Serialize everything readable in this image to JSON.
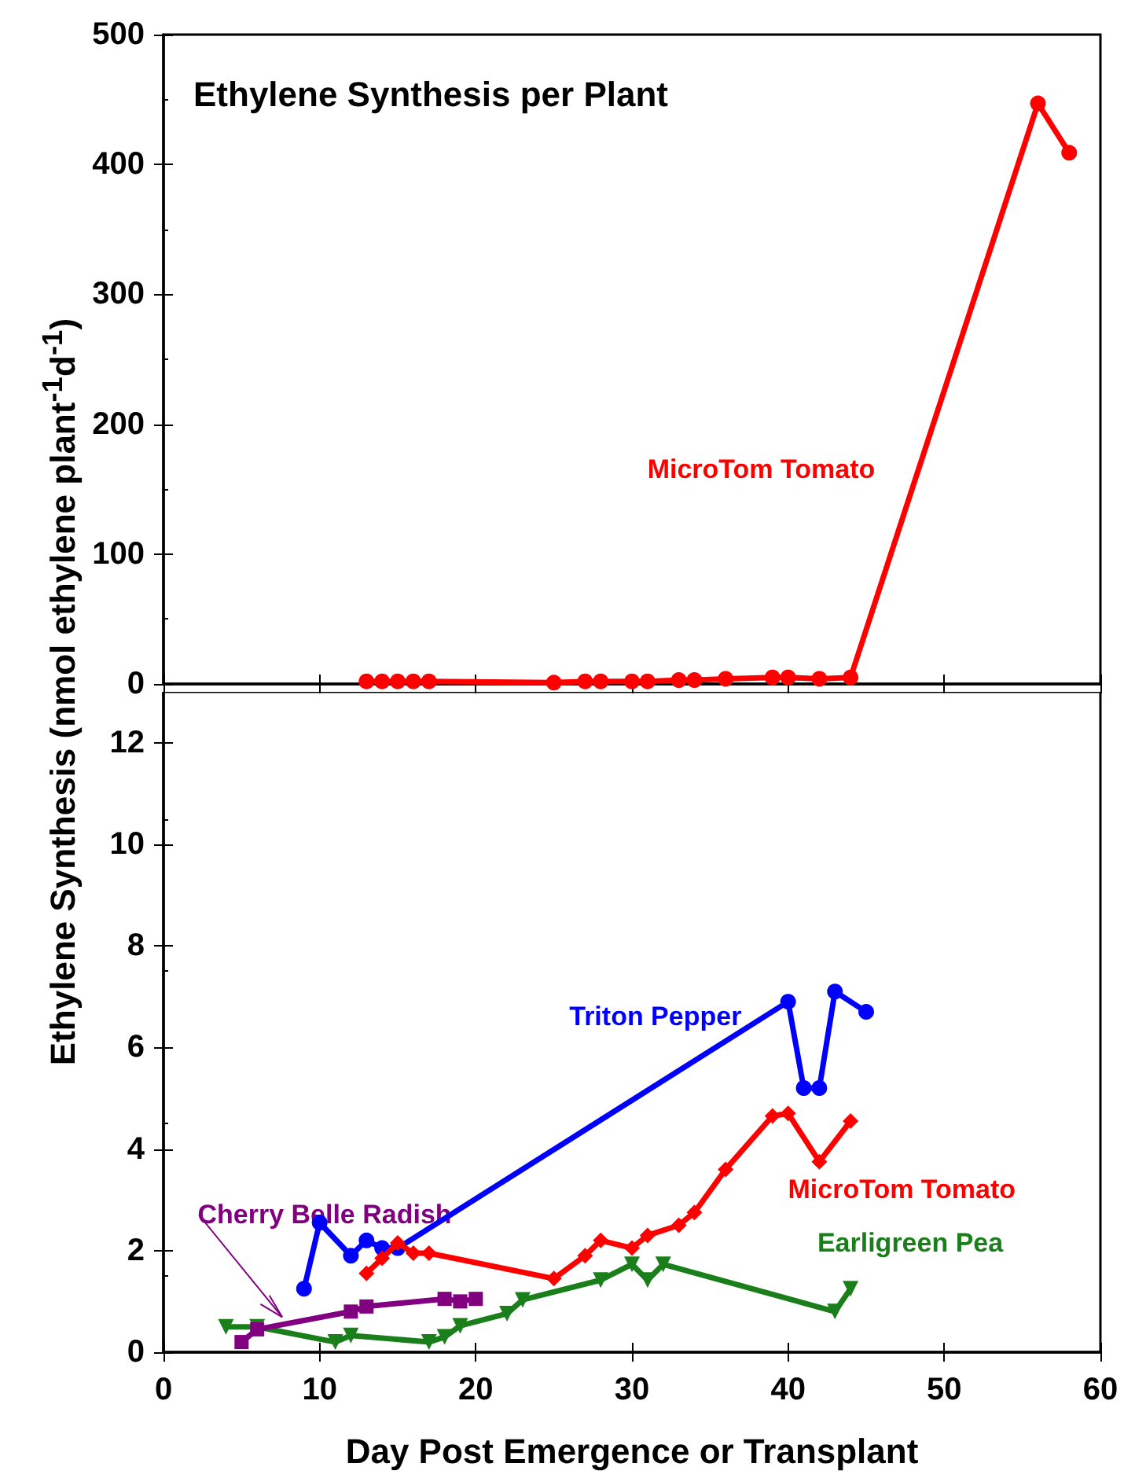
{
  "chart_data": [
    {
      "type": "line",
      "title": "Ethylene Synthesis per Plant",
      "xlim": [
        0,
        60
      ],
      "xticks": [
        0,
        10,
        20,
        30,
        40,
        50,
        60
      ],
      "ylim": [
        0,
        500
      ],
      "yticks": [
        0,
        100,
        200,
        300,
        400,
        500
      ],
      "tick_labels": "y",
      "grid": false,
      "legend": false,
      "series": [
        {
          "name": "MicroTom Tomato",
          "color": "#ff0000",
          "marker": "circle",
          "x": [
            13,
            14,
            15,
            16,
            17,
            25,
            27,
            28,
            30,
            31,
            33,
            34,
            36,
            39,
            40,
            42,
            44,
            56,
            58
          ],
          "values": [
            2,
            2,
            2,
            2,
            2,
            1,
            2,
            2,
            2,
            2,
            3,
            3,
            4,
            5,
            5,
            4,
            5,
            447,
            409
          ]
        }
      ]
    },
    {
      "type": "line",
      "xlabel": "Day Post Emergence or Transplant",
      "ylabel": "Ethylene Synthesis (nmol ethylene plant$^{-1}$d$^{-1}$)",
      "xlim": [
        0,
        60
      ],
      "xticks": [
        0,
        10,
        20,
        30,
        40,
        50,
        60
      ],
      "ylim": [
        0,
        13
      ],
      "yticks": [
        0,
        2,
        4,
        6,
        8,
        10,
        12
      ],
      "grid": false,
      "legend": false,
      "series": [
        {
          "name": "MicroTom Tomato",
          "color": "#ff0000",
          "marker": "diamond",
          "x": [
            13,
            14,
            15,
            16,
            17,
            25,
            27,
            28,
            30,
            31,
            33,
            34,
            36,
            39,
            40,
            42,
            44
          ],
          "values": [
            1.55,
            1.85,
            2.15,
            1.95,
            1.95,
            1.45,
            1.9,
            2.2,
            2.05,
            2.3,
            2.5,
            2.75,
            3.6,
            4.65,
            4.7,
            3.75,
            4.55
          ]
        },
        {
          "name": "Triton Pepper",
          "color": "#0000ff",
          "marker": "circle",
          "x": [
            9,
            10,
            12,
            13,
            14,
            15,
            40,
            41,
            42,
            43,
            45
          ],
          "values": [
            1.25,
            2.55,
            1.9,
            2.2,
            2.05,
            2.05,
            6.9,
            5.2,
            5.2,
            7.1,
            6.7
          ]
        },
        {
          "name": "Cherry Belle Radish",
          "color": "#800080",
          "marker": "square",
          "x": [
            5,
            6,
            12,
            13,
            18,
            19,
            20
          ],
          "values": [
            0.2,
            0.45,
            0.8,
            0.9,
            1.05,
            1.0,
            1.05
          ]
        },
        {
          "name": "Earligreen Pea",
          "color": "#1a7f1a",
          "marker": "triangle",
          "x": [
            4,
            6,
            11,
            12,
            17,
            18,
            19,
            22,
            23,
            28,
            30,
            31,
            32,
            43,
            44
          ],
          "values": [
            0.5,
            0.5,
            0.2,
            0.33,
            0.2,
            0.3,
            0.52,
            0.76,
            1.03,
            1.42,
            1.73,
            1.42,
            1.73,
            0.8,
            1.25
          ]
        }
      ]
    }
  ]
}
